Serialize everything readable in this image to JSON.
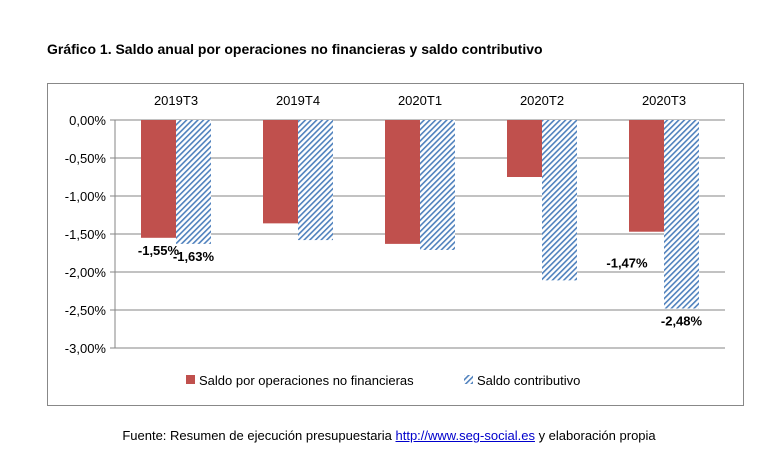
{
  "title": "Gráfico 1. Saldo anual por operaciones no financieras y saldo contributivo",
  "source": {
    "prefix": "Fuente: Resumen de ejecución presupuestaria ",
    "link": "http://www.seg-social.es",
    "suffix": " y elaboración propia"
  },
  "chart_data": {
    "type": "bar",
    "categories": [
      "2019T3",
      "2019T4",
      "2020T1",
      "2020T2",
      "2020T3"
    ],
    "series": [
      {
        "name": "Saldo por operaciones no financieras",
        "values": [
          -1.55,
          -1.36,
          -1.63,
          -0.75,
          -1.47
        ],
        "color": "#c0504d",
        "pattern": "solid"
      },
      {
        "name": "Saldo contributivo",
        "values": [
          -1.63,
          -1.58,
          -1.71,
          -2.11,
          -2.48
        ],
        "color": "#4f81bd",
        "pattern": "diagonal-hatch"
      }
    ],
    "data_labels": [
      {
        "series": 0,
        "category": 0,
        "text": "-1,55%"
      },
      {
        "series": 1,
        "category": 0,
        "text": "-1,63%"
      },
      {
        "series": 0,
        "category": 4,
        "text": "-1,47%"
      },
      {
        "series": 1,
        "category": 4,
        "text": "-2,48%"
      }
    ],
    "ylim": [
      -3.0,
      0.0
    ],
    "yticks": [
      "0,00%",
      "-0,50%",
      "-1,00%",
      "-1,50%",
      "-2,00%",
      "-2,50%",
      "-3,00%"
    ],
    "grid": true,
    "legend": "bottom",
    "category_labels_position": "top"
  }
}
